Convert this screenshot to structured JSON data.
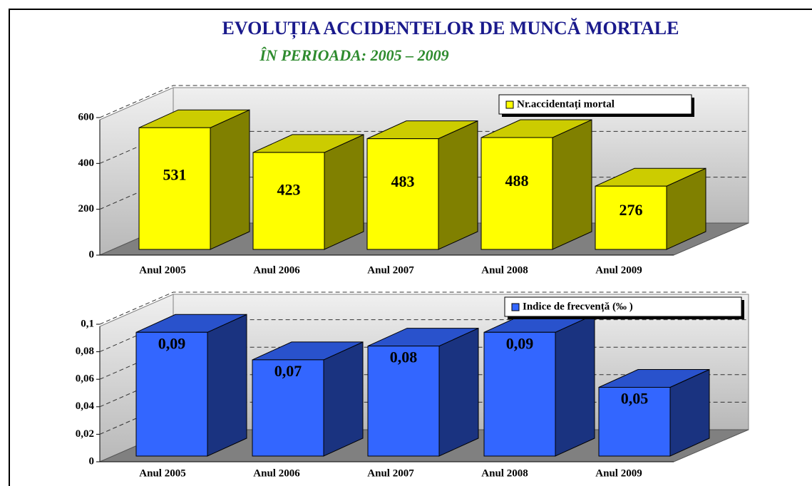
{
  "title": "EVOLUȚIA ACCIDENTELOR DE MUNCĂ MORTALE",
  "subtitle": "ÎN PERIOADA: 2005 – 2009",
  "chart_data": [
    {
      "type": "bar",
      "categories": [
        "Anul 2005",
        "Anul 2006",
        "Anul 2007",
        "Anul 2008",
        "Anul 2009"
      ],
      "series": [
        {
          "name": "Nr.accidentați mortal",
          "color": "#ffff00",
          "values": [
            531,
            423,
            483,
            488,
            276
          ]
        }
      ],
      "ylim": [
        0,
        600
      ],
      "yticks": [
        0,
        200,
        400,
        600
      ],
      "grid": true
    },
    {
      "type": "bar",
      "categories": [
        "Anul 2005",
        "Anul 2006",
        "Anul 2007",
        "Anul 2008",
        "Anul 2009"
      ],
      "series": [
        {
          "name": "Indice de frecvență (‰ )",
          "color": "#3366ff",
          "values": [
            0.09,
            0.07,
            0.08,
            0.09,
            0.05
          ],
          "value_labels": [
            "0,09",
            "0,07",
            "0,08",
            "0,09",
            "0,05"
          ]
        }
      ],
      "ylim": [
        0,
        0.1
      ],
      "yticks": [
        0,
        {
          "value": 0.02,
          "label": "0,02"
        },
        {
          "value": 0.04,
          "label": "0,04"
        },
        {
          "value": 0.06,
          "label": "0,06"
        },
        {
          "value": 0.08,
          "label": "0,08"
        },
        {
          "value": 0.1,
          "label": "0,1"
        }
      ],
      "grid": true
    }
  ]
}
